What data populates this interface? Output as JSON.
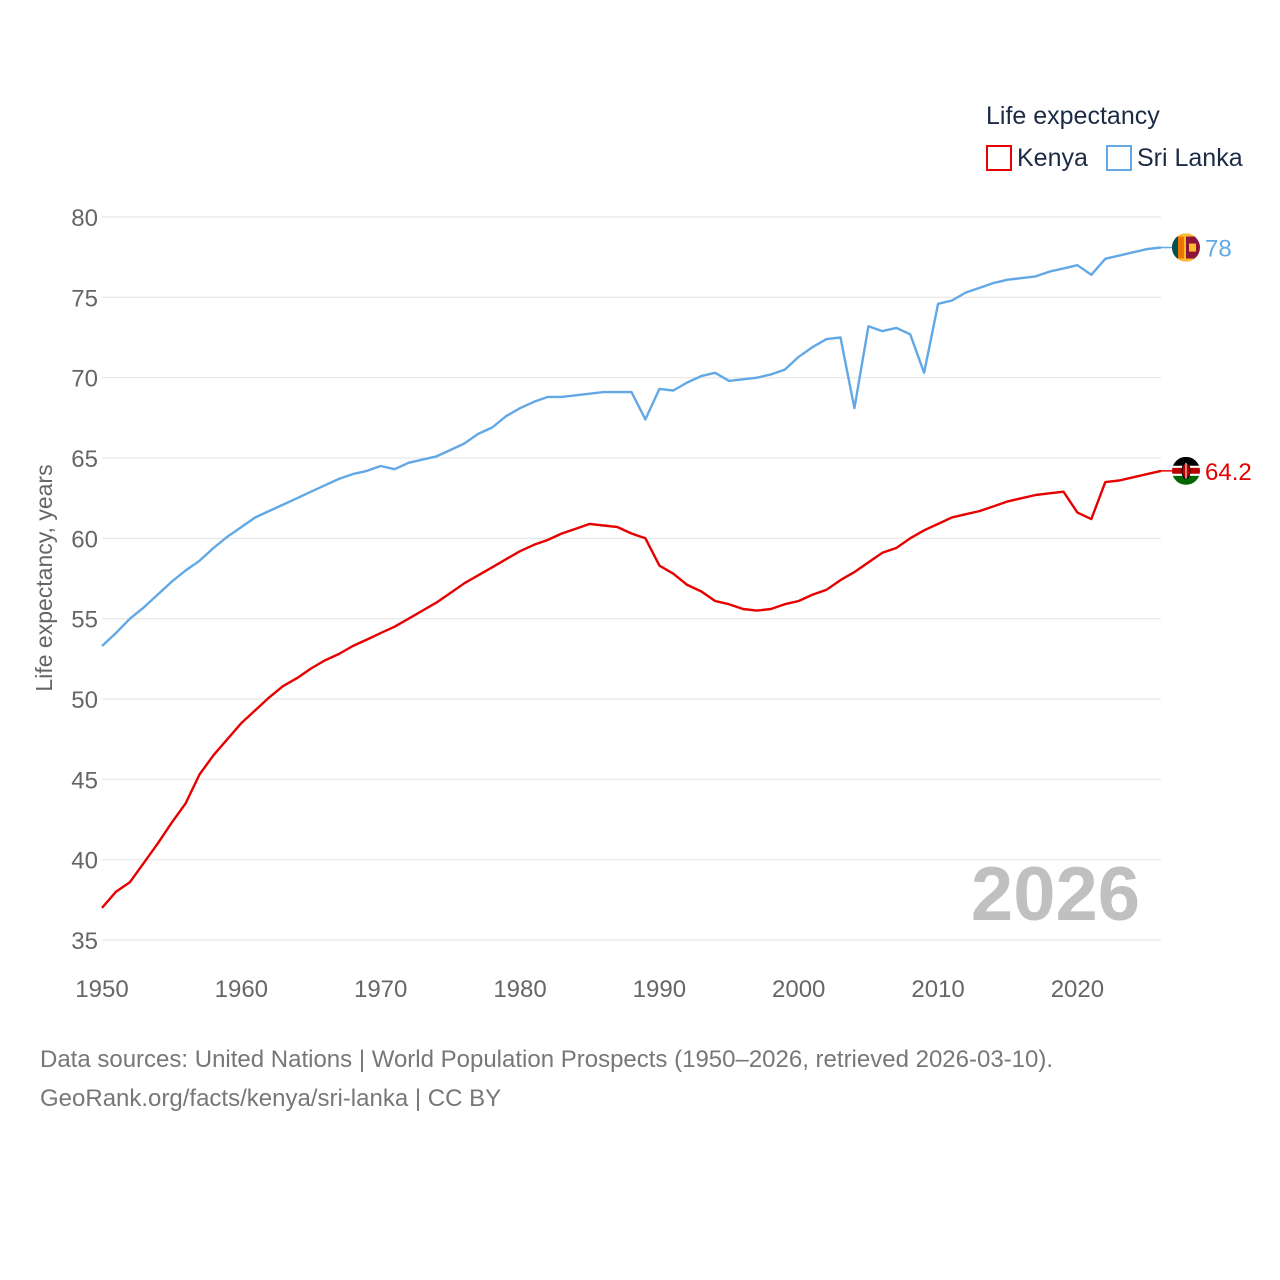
{
  "chart_data": {
    "type": "line",
    "title": "Life expectancy",
    "ylabel": "Life expectancy, years",
    "xlabel": "",
    "xlim": [
      1950,
      2026
    ],
    "ylim": [
      35,
      80
    ],
    "x_ticks": [
      "1950",
      "1960",
      "1970",
      "1980",
      "1990",
      "2000",
      "2010",
      "2020"
    ],
    "y_ticks": [
      "35",
      "40",
      "45",
      "50",
      "55",
      "60",
      "65",
      "70",
      "75",
      "80"
    ],
    "grid": true,
    "legend_position": "top-right",
    "year_watermark": "2026",
    "x": [
      1950,
      1951,
      1952,
      1953,
      1954,
      1955,
      1956,
      1957,
      1958,
      1959,
      1960,
      1961,
      1962,
      1963,
      1964,
      1965,
      1966,
      1967,
      1968,
      1969,
      1970,
      1971,
      1972,
      1973,
      1974,
      1975,
      1976,
      1977,
      1978,
      1979,
      1980,
      1981,
      1982,
      1983,
      1984,
      1985,
      1986,
      1987,
      1988,
      1989,
      1990,
      1991,
      1992,
      1993,
      1994,
      1995,
      1996,
      1997,
      1998,
      1999,
      2000,
      2001,
      2002,
      2003,
      2004,
      2005,
      2006,
      2007,
      2008,
      2009,
      2010,
      2011,
      2012,
      2013,
      2014,
      2015,
      2016,
      2017,
      2018,
      2019,
      2020,
      2021,
      2022,
      2023,
      2024,
      2025,
      2026
    ],
    "series": [
      {
        "name": "Kenya",
        "color": "#e60000",
        "end_label": "64.2",
        "flag": "kenya-flag",
        "values": [
          37.0,
          38.0,
          38.6,
          39.8,
          41.0,
          42.3,
          43.5,
          45.3,
          46.5,
          47.5,
          48.5,
          49.3,
          50.1,
          50.8,
          51.3,
          51.9,
          52.4,
          52.8,
          53.3,
          53.7,
          54.1,
          54.5,
          55.0,
          55.5,
          56.0,
          56.6,
          57.2,
          57.7,
          58.2,
          58.7,
          59.2,
          59.6,
          59.9,
          60.3,
          60.6,
          60.9,
          60.8,
          60.7,
          60.3,
          60.0,
          58.3,
          57.8,
          57.1,
          56.7,
          56.1,
          55.9,
          55.6,
          55.5,
          55.6,
          55.9,
          56.1,
          56.5,
          56.8,
          57.4,
          57.9,
          58.5,
          59.1,
          59.4,
          60.0,
          60.5,
          60.9,
          61.3,
          61.5,
          61.7,
          62.0,
          62.3,
          62.5,
          62.7,
          62.8,
          62.9,
          61.6,
          61.2,
          63.5,
          63.6,
          63.8,
          64.0,
          64.2
        ]
      },
      {
        "name": "Sri Lanka",
        "color": "#62a8e5",
        "end_label": "78",
        "flag": "sri-lanka-flag",
        "values": [
          53.3,
          54.1,
          55.0,
          55.7,
          56.5,
          57.3,
          58.0,
          58.6,
          59.4,
          60.1,
          60.7,
          61.3,
          61.7,
          62.1,
          62.5,
          62.9,
          63.3,
          63.7,
          64.0,
          64.2,
          64.5,
          64.3,
          64.7,
          64.9,
          65.1,
          65.5,
          65.9,
          66.5,
          66.9,
          67.6,
          68.1,
          68.5,
          68.8,
          68.8,
          68.9,
          69.0,
          69.1,
          69.1,
          69.1,
          67.4,
          69.3,
          69.2,
          69.7,
          70.1,
          70.3,
          69.8,
          69.9,
          70.0,
          70.2,
          70.5,
          71.3,
          71.9,
          72.4,
          72.5,
          68.1,
          73.2,
          72.9,
          73.1,
          72.7,
          70.3,
          74.6,
          74.8,
          75.3,
          75.6,
          75.9,
          76.1,
          76.2,
          76.3,
          76.6,
          76.8,
          77.0,
          76.4,
          77.4,
          77.6,
          77.8,
          78.0,
          78.1
        ]
      }
    ]
  },
  "source": {
    "line1": "Data sources: United Nations | World Population Prospects (1950–2026, retrieved 2026-03-10).",
    "line2": "GeoRank.org/facts/kenya/sri-lanka | CC BY"
  }
}
